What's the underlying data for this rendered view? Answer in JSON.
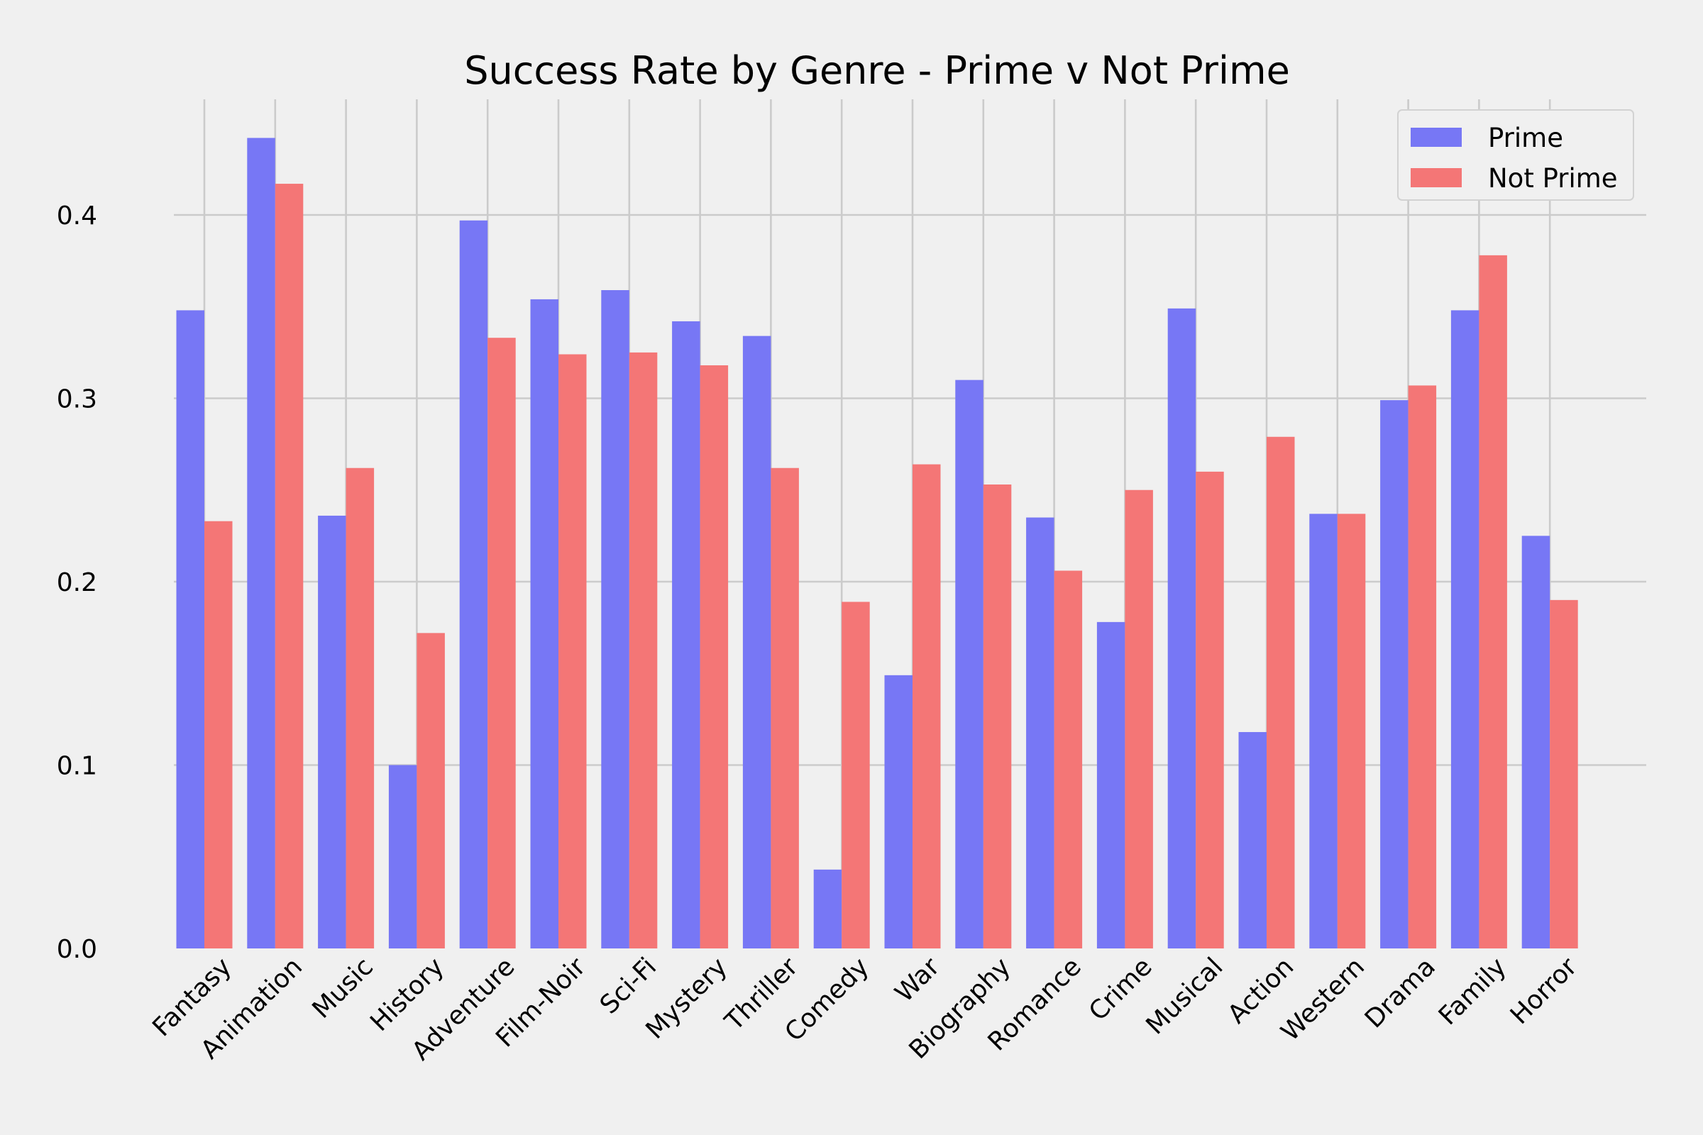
{
  "chart_data": {
    "type": "bar",
    "title": "Success Rate by Genre - Prime v Not Prime",
    "xlabel": "",
    "ylabel": "",
    "ylim": [
      0,
      0.46
    ],
    "yticks": [
      "0.0",
      "0.1",
      "0.2",
      "0.3",
      "0.4"
    ],
    "grid": true,
    "legend_position": "top-right",
    "categories": [
      "Fantasy",
      "Animation",
      "Music",
      "History",
      "Adventure",
      "Film-Noir",
      "Sci-Fi",
      "Mystery",
      "Thriller",
      "Comedy",
      "War",
      "Biography",
      "Romance",
      "Crime",
      "Musical",
      "Action",
      "Western",
      "Drama",
      "Family",
      "Horror"
    ],
    "series": [
      {
        "name": "Prime",
        "color": "#7777f5",
        "values": [
          0.348,
          0.442,
          0.236,
          0.1,
          0.397,
          0.354,
          0.359,
          0.342,
          0.334,
          0.043,
          0.149,
          0.31,
          0.235,
          0.178,
          0.349,
          0.118,
          0.237,
          0.299,
          0.348,
          0.225
        ]
      },
      {
        "name": "Not Prime",
        "color": "#f47676",
        "values": [
          0.233,
          0.417,
          0.262,
          0.172,
          0.333,
          0.324,
          0.325,
          0.318,
          0.262,
          0.189,
          0.264,
          0.253,
          0.206,
          0.25,
          0.26,
          0.279,
          0.237,
          0.307,
          0.378,
          0.19
        ]
      }
    ]
  }
}
